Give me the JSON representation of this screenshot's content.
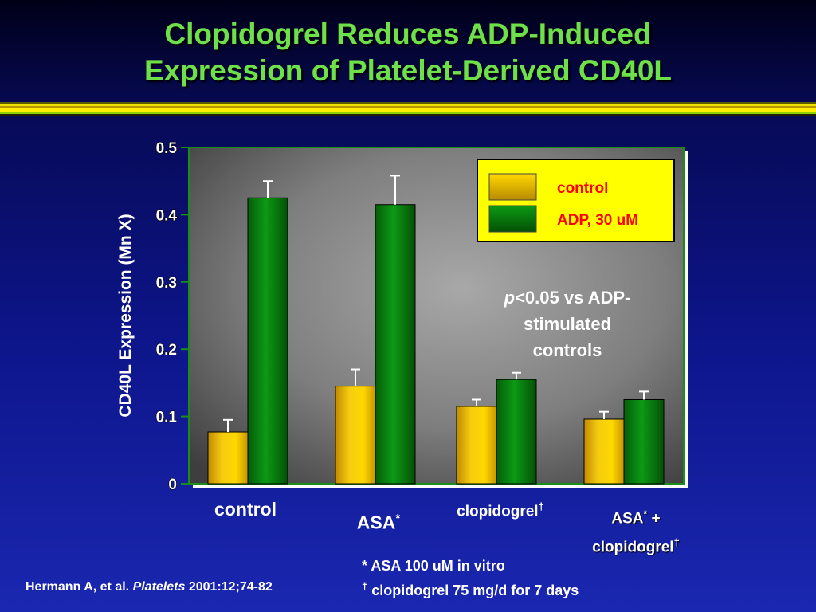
{
  "slide": {
    "title_line1": "Clopidogrel Reduces ADP-Induced",
    "title_line2": "Expression of Platelet-Derived CD40L",
    "stat_note": {
      "p_symbol": "p",
      "line1_rest": "<0.05 vs ADP-",
      "line2": "stimulated",
      "line3": "controls"
    },
    "footnotes": {
      "asa_mark": "*",
      "asa_text": "ASA 100 uM in vitro",
      "clop_mark": "†",
      "clop_text": "clopidogrel 75 mg/d for 7 days"
    },
    "citation": {
      "authors": "Hermann A, et al. ",
      "journal": "Platelets",
      "details": " 2001:12;74-82"
    },
    "category_labels": {
      "control": "control",
      "asa": "ASA",
      "asa_mark": "*",
      "clopidogrel": "clopidogrel",
      "clopidogrel_mark": "†",
      "combo_asa": "ASA",
      "combo_asa_mark": "*",
      "combo_plus": " +",
      "combo_clop": "clopidogrel",
      "combo_clop_mark": "†"
    }
  },
  "colors": {
    "title": "#6ee04a",
    "control_bar": "#f2c200",
    "adp_bar": "#0a8a12",
    "legend_bg": "#ffff00",
    "legend_text": "#ff0000",
    "plot_border": "#1a8c1a"
  },
  "chart_data": {
    "type": "bar",
    "categories": [
      "control",
      "ASA*",
      "clopidogrel†",
      "ASA* + clopidogrel†"
    ],
    "series": [
      {
        "name": "control",
        "values": [
          0.077,
          0.145,
          0.115,
          0.096
        ],
        "errors": [
          0.018,
          0.025,
          0.01,
          0.011
        ]
      },
      {
        "name": "ADP, 30 uM",
        "values": [
          0.425,
          0.415,
          0.155,
          0.125
        ],
        "errors": [
          0.025,
          0.043,
          0.01,
          0.012
        ]
      }
    ],
    "ylabel": "CD40L Expression (Mn X)",
    "ylim": [
      0,
      0.5
    ],
    "yticks": [
      "0",
      "0.1",
      "0.2",
      "0.3",
      "0.4",
      "0.5"
    ],
    "legend_position": "top-right",
    "grid": false
  }
}
